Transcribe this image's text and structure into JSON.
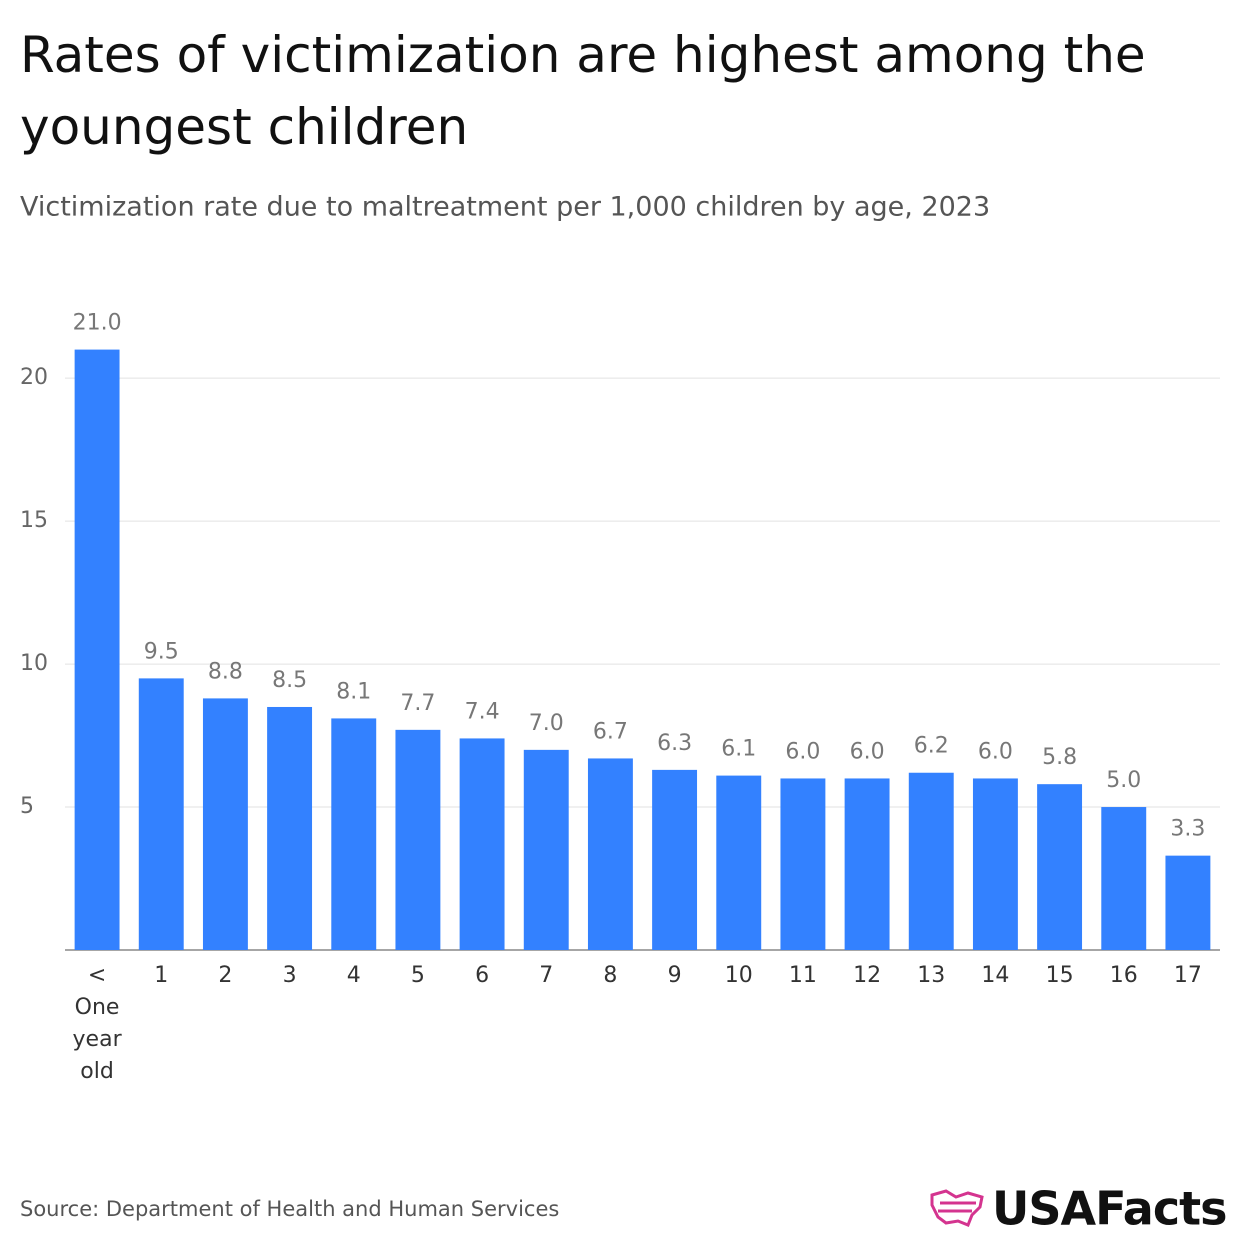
{
  "chart_data": {
    "type": "bar",
    "title": "Rates of victimization are highest among the youngest children",
    "subtitle": "Victimization rate due to maltreatment per 1,000 children by age, 2023",
    "categories": [
      "< One year old",
      "1",
      "2",
      "3",
      "4",
      "5",
      "6",
      "7",
      "8",
      "9",
      "10",
      "11",
      "12",
      "13",
      "14",
      "15",
      "16",
      "17"
    ],
    "values": [
      21.0,
      9.5,
      8.8,
      8.5,
      8.1,
      7.7,
      7.4,
      7.0,
      6.7,
      6.3,
      6.1,
      6.0,
      6.0,
      6.2,
      6.0,
      5.8,
      5.0,
      3.3
    ],
    "value_labels": [
      "21.0",
      "9.5",
      "8.8",
      "8.5",
      "8.1",
      "7.7",
      "7.4",
      "7.0",
      "6.7",
      "6.3",
      "6.1",
      "6.0",
      "6.0",
      "6.2",
      "6.0",
      "5.8",
      "5.0",
      "3.3"
    ],
    "color": "#3381ff",
    "ylim": [
      0,
      22
    ],
    "yticks": [
      5,
      10,
      15,
      20
    ],
    "grid": true,
    "source": "Source: Department of Health and Human Services",
    "logo": "USAFacts"
  }
}
